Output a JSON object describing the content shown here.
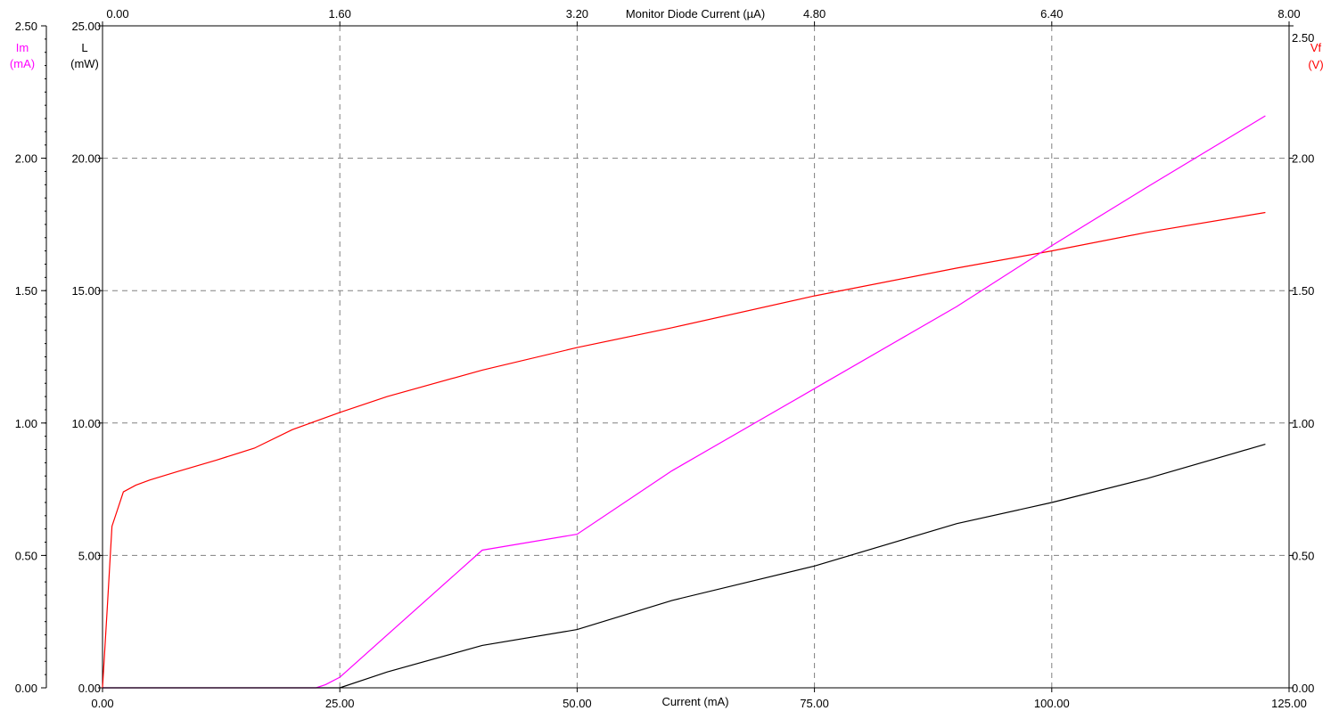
{
  "chart_data": {
    "type": "line",
    "xlabel": "Current (mA)",
    "x2label": "Monitor Diode Current (µA)",
    "x_ticks": [
      "0.00",
      "25.00",
      "50.00",
      "75.00",
      "100.00",
      "125.00"
    ],
    "x2_ticks": [
      "0.00",
      "1.60",
      "3.20",
      "4.80",
      "6.40",
      "8.00"
    ],
    "xlim": [
      0,
      125
    ],
    "x2lim": [
      0,
      8
    ],
    "y_axes": {
      "im": {
        "label_line1": "Im",
        "label_line2": "(mA)",
        "ylim": [
          0,
          2.5
        ],
        "ticks": [
          "0.00",
          "0.50",
          "1.00",
          "1.50",
          "2.00",
          "2.50"
        ],
        "color": "#ff00ff"
      },
      "l": {
        "label_line1": "L",
        "label_line2": "(mW)",
        "ylim": [
          0,
          25
        ],
        "ticks": [
          "0.00",
          "5.00",
          "10.00",
          "15.00",
          "20.00",
          "25.00"
        ],
        "color": "#000000"
      },
      "vf": {
        "label_line1": "Vf",
        "label_line2": "(V)",
        "ylim": [
          0,
          2.5
        ],
        "ticks": [
          "0.00",
          "0.50",
          "1.00",
          "1.50",
          "2.00",
          "2.50"
        ],
        "color": "#ff0000"
      }
    },
    "grid": true,
    "series": [
      {
        "axis": "vf",
        "color": "#ff0000",
        "points": [
          [
            0,
            0
          ],
          [
            0.5,
            0.3
          ],
          [
            1.0,
            0.61
          ],
          [
            2.2,
            0.74
          ],
          [
            3.5,
            0.765
          ],
          [
            5,
            0.785
          ],
          [
            8,
            0.818
          ],
          [
            12,
            0.86
          ],
          [
            16,
            0.905
          ],
          [
            20,
            0.975
          ],
          [
            25,
            1.04
          ],
          [
            30,
            1.1
          ],
          [
            40,
            1.2
          ],
          [
            50,
            1.285
          ],
          [
            60,
            1.36
          ],
          [
            75,
            1.48
          ],
          [
            90,
            1.585
          ],
          [
            100,
            1.65
          ],
          [
            110,
            1.72
          ],
          [
            122.5,
            1.795
          ]
        ]
      },
      {
        "axis": "im",
        "color": "#ff00ff",
        "points": [
          [
            0,
            0
          ],
          [
            22.5,
            0.0
          ],
          [
            23.5,
            0.012
          ],
          [
            25,
            0.04
          ],
          [
            30,
            0.2
          ],
          [
            40,
            0.52
          ],
          [
            50,
            0.58
          ],
          [
            60,
            0.82
          ],
          [
            75,
            1.13
          ],
          [
            90,
            1.44
          ],
          [
            100,
            1.67
          ],
          [
            110,
            1.89
          ],
          [
            122.5,
            2.16
          ]
        ]
      },
      {
        "axis": "l",
        "color": "#000000",
        "points": [
          [
            0,
            0
          ],
          [
            25,
            0
          ],
          [
            30,
            0.6
          ],
          [
            40,
            1.6
          ],
          [
            50,
            2.2
          ],
          [
            60,
            3.3
          ],
          [
            75,
            4.6
          ],
          [
            90,
            6.2
          ],
          [
            100,
            7.0
          ],
          [
            110,
            7.9
          ],
          [
            122.5,
            9.2
          ]
        ]
      }
    ]
  }
}
